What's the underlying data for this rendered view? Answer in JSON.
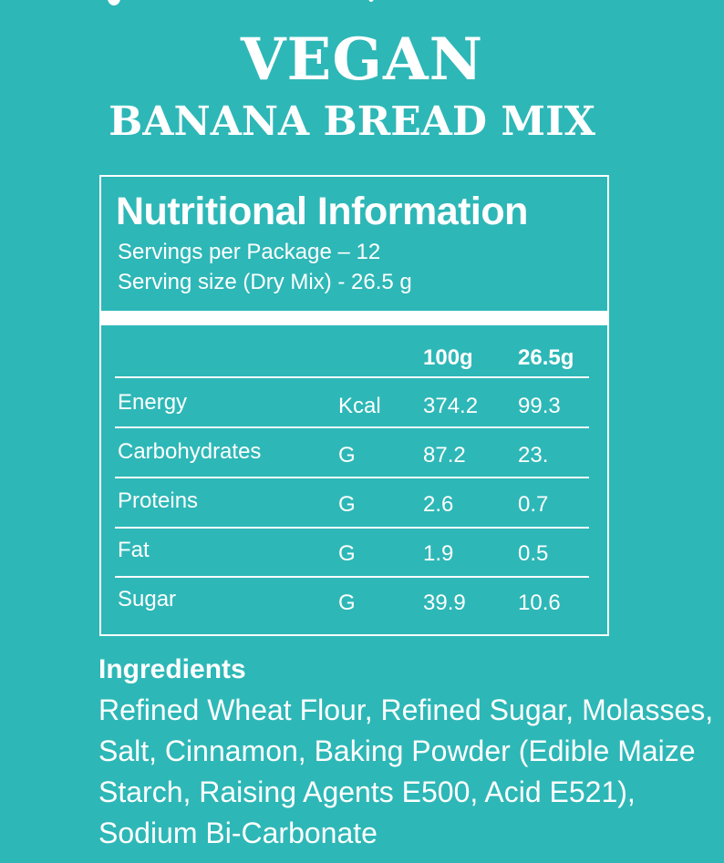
{
  "product": {
    "title": "VEGAN",
    "subtitle": "BANANA BREAD MIX"
  },
  "nutrition": {
    "heading": "Nutritional Information",
    "servings": "Servings per Package – 12",
    "serving_size": "Serving size (Dry Mix) - 26.5 g",
    "columns": {
      "per_100g": "100g",
      "per_serving": "26.5g"
    },
    "rows": [
      {
        "name": "Energy",
        "unit": "Kcal",
        "per_100g": "374.2",
        "per_serving": "99.3"
      },
      {
        "name": "Carbohydrates",
        "unit": "G",
        "per_100g": "87.2",
        "per_serving": "23."
      },
      {
        "name": "Proteins",
        "unit": "G",
        "per_100g": "2.6",
        "per_serving": "0.7"
      },
      {
        "name": "Fat",
        "unit": "G",
        "per_100g": "1.9",
        "per_serving": "0.5"
      },
      {
        "name": "Sugar",
        "unit": "G",
        "per_100g": "39.9",
        "per_serving": "10.6"
      }
    ]
  },
  "ingredients": {
    "heading": "Ingredients",
    "text": "Refined Wheat Flour, Refined Sugar, Molasses, Salt, Cinnamon, Baking Powder (Edible Maize Starch, Raising Agents E500, Acid E521), Sodium Bi-Carbonate"
  },
  "colors": {
    "background": "#2eb7b7",
    "foreground": "#ffffff"
  }
}
